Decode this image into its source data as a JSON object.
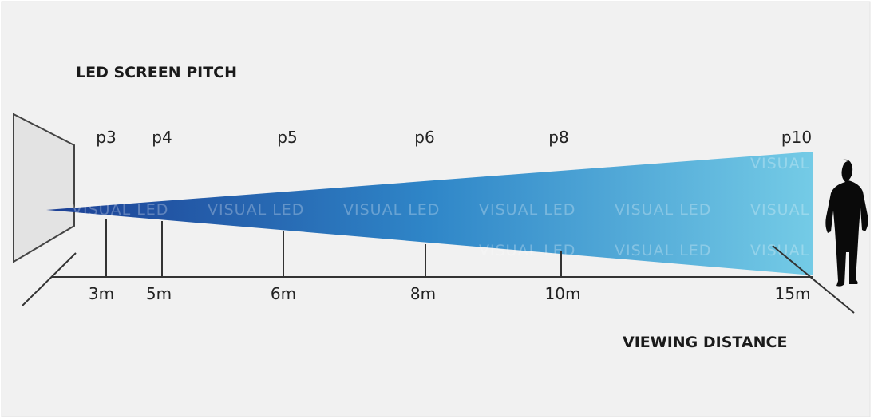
{
  "header": {
    "title": "LED SCREEN PITCH"
  },
  "markers": [
    {
      "pitch": "p3",
      "distance": "3m"
    },
    {
      "pitch": "p4",
      "distance": "5m"
    },
    {
      "pitch": "p5",
      "distance": "6m"
    },
    {
      "pitch": "p6",
      "distance": "8m"
    },
    {
      "pitch": "p8",
      "distance": "10m"
    },
    {
      "pitch": "p10",
      "distance": "15m"
    }
  ],
  "axis_label": "VIEWING DISTANCE",
  "watermark": "VISUAL LED"
}
